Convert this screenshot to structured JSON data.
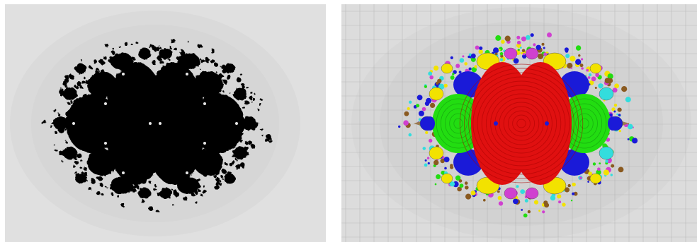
{
  "figure": {
    "panels": [
      {
        "name": "julia-set-black",
        "fill_color": "#000000",
        "background_color": "#e0e0e0",
        "halo_color": "#d6d6d6"
      },
      {
        "name": "julia-set-colored-grid",
        "background_color": "#dcdcdc",
        "grid": true,
        "grid_color": "#a8a8a8",
        "palette": {
          "red": "#e01010",
          "green": "#22dd11",
          "blue": "#1a1ad8",
          "yellow": "#f2e200",
          "cyan": "#33dddd",
          "magenta": "#d040d0"
        }
      }
    ]
  }
}
